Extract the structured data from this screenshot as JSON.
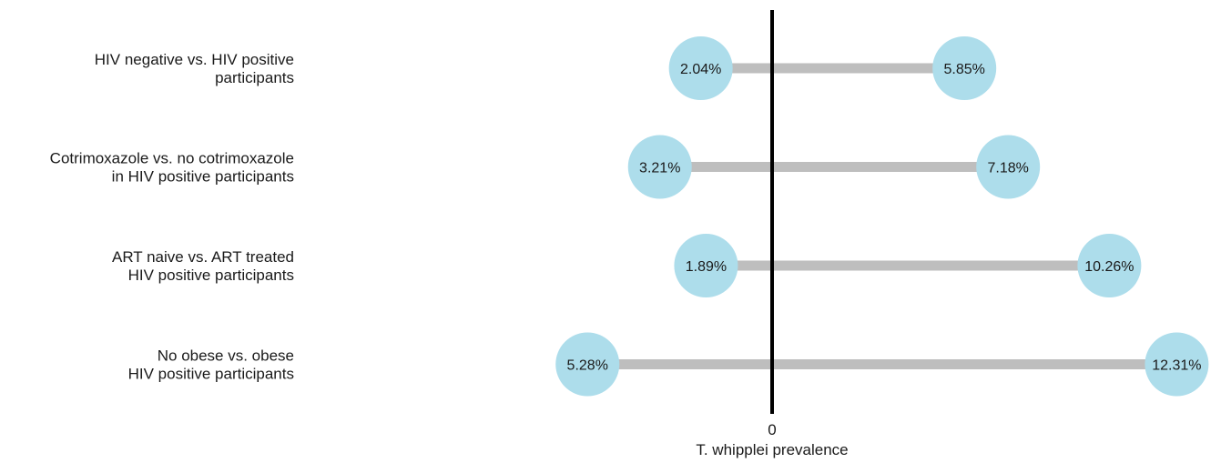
{
  "chart_data": {
    "type": "dumbbell",
    "title": "",
    "xlabel": "T. whipplei prevalence",
    "x_tick_label": "0",
    "categories": [
      [
        "HIV negative vs. HIV positive",
        "participants"
      ],
      [
        "Cotrimoxazole vs. no cotrimoxazole",
        "in HIV positive participants"
      ],
      [
        "ART naive vs. ART treated",
        "HIV positive participants"
      ],
      [
        "No obese vs. obese",
        "HIV positive participants"
      ]
    ],
    "left_values": [
      2.04,
      3.21,
      1.89,
      5.28
    ],
    "right_values": [
      5.85,
      7.18,
      10.26,
      12.31
    ],
    "left_labels": [
      "2.04%",
      "3.21%",
      "1.89%",
      "5.28%"
    ],
    "right_labels": [
      "5.85%",
      "7.18%",
      "10.26%",
      "12.31%"
    ],
    "x_scale_note": "left values plotted to the left of the zero line, right values to the right",
    "colors": {
      "dot": "#ADDDEB",
      "segment": "#BEBEBE",
      "zero_line": "#000000",
      "text": "#1a1a1a"
    },
    "grid": false,
    "legend": "none"
  }
}
